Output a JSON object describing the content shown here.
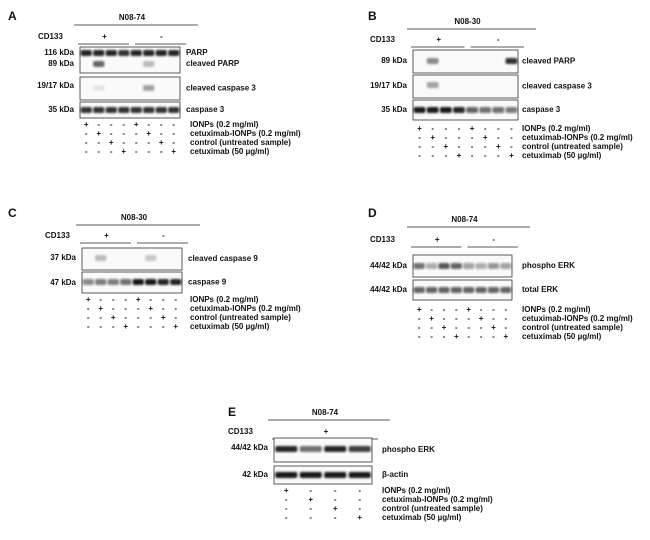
{
  "panels": [
    {
      "label": "A",
      "cell_line": "N08-74",
      "group_label": "CD133",
      "groups": [
        "+",
        "-"
      ],
      "blots": [
        {
          "kda": [
            "116 kDa",
            "89 kDa"
          ],
          "names": [
            "PARP",
            "cleaved PARP"
          ]
        },
        {
          "kda": [
            "19/17 kDa"
          ],
          "names": [
            "cleaved caspase 3"
          ]
        },
        {
          "kda": [
            "35 kDa"
          ],
          "names": [
            "caspase 3"
          ]
        }
      ],
      "treatments": [
        {
          "label": "IONPs (0.2 mg/ml)",
          "signs": [
            "+",
            "-",
            "-",
            "-",
            "+",
            "-",
            "-",
            "-"
          ]
        },
        {
          "label": "cetuximab-IONPs (0.2 mg/ml)",
          "signs": [
            "-",
            "+",
            "-",
            "-",
            "-",
            "+",
            "-",
            "-"
          ]
        },
        {
          "label": "control (untreated sample)",
          "signs": [
            "-",
            "-",
            "+",
            "-",
            "-",
            "-",
            "+",
            "-"
          ]
        },
        {
          "label": "cetuximab (50 µg/ml)",
          "signs": [
            "-",
            "-",
            "-",
            "+",
            "-",
            "-",
            "-",
            "+"
          ]
        }
      ]
    },
    {
      "label": "B",
      "cell_line": "N08-30",
      "group_label": "CD133",
      "groups": [
        "+",
        "-"
      ],
      "blots": [
        {
          "kda": [
            "89 kDa"
          ],
          "names": [
            "cleaved PARP"
          ]
        },
        {
          "kda": [
            "19/17 kDa"
          ],
          "names": [
            "cleaved caspase 3"
          ]
        },
        {
          "kda": [
            "35 kDa"
          ],
          "names": [
            "caspase 3"
          ]
        }
      ],
      "treatments": [
        {
          "label": "IONPs (0.2 mg/ml)",
          "signs": [
            "+",
            "-",
            "-",
            "-",
            "+",
            "-",
            "-",
            "-"
          ]
        },
        {
          "label": "cetuximab-IONPs (0.2 mg/ml)",
          "signs": [
            "-",
            "+",
            "-",
            "-",
            "-",
            "+",
            "-",
            "-"
          ]
        },
        {
          "label": "control (untreated sample)",
          "signs": [
            "-",
            "-",
            "+",
            "-",
            "-",
            "-",
            "+",
            "-"
          ]
        },
        {
          "label": "cetuximab (50 µg/ml)",
          "signs": [
            "-",
            "-",
            "-",
            "+",
            "-",
            "-",
            "-",
            "+"
          ]
        }
      ]
    },
    {
      "label": "C",
      "cell_line": "N08-30",
      "group_label": "CD133",
      "groups": [
        "+",
        "-"
      ],
      "blots": [
        {
          "kda": [
            "37 kDa"
          ],
          "names": [
            "cleaved caspase 9"
          ]
        },
        {
          "kda": [
            "47 kDa"
          ],
          "names": [
            "caspase 9"
          ]
        }
      ],
      "treatments": [
        {
          "label": "IONPs (0.2 mg/ml)",
          "signs": [
            "+",
            "-",
            "-",
            "-",
            "+",
            "-",
            "-",
            "-"
          ]
        },
        {
          "label": "cetuximab-IONPs (0.2 mg/ml)",
          "signs": [
            "-",
            "+",
            "-",
            "-",
            "-",
            "+",
            "-",
            "-"
          ]
        },
        {
          "label": "control (untreated sample)",
          "signs": [
            "-",
            "-",
            "+",
            "-",
            "-",
            "-",
            "+",
            "-"
          ]
        },
        {
          "label": "cetuximab (50 µg/ml)",
          "signs": [
            "-",
            "-",
            "-",
            "+",
            "-",
            "-",
            "-",
            "+"
          ]
        }
      ]
    },
    {
      "label": "D",
      "cell_line": "N08-74",
      "group_label": "CD133",
      "groups": [
        "+",
        "-"
      ],
      "blots": [
        {
          "kda": [
            "44/42 kDa"
          ],
          "names": [
            "phospho ERK"
          ]
        },
        {
          "kda": [
            "44/42 kDa"
          ],
          "names": [
            "total ERK"
          ]
        }
      ],
      "treatments": [
        {
          "label": "IONPs (0.2 mg/ml)",
          "signs": [
            "+",
            "-",
            "-",
            "-",
            "+",
            "-",
            "-",
            "-"
          ]
        },
        {
          "label": "cetuximab-IONPs (0.2 mg/ml)",
          "signs": [
            "-",
            "+",
            "-",
            "-",
            "-",
            "+",
            "-",
            "-"
          ]
        },
        {
          "label": "control (untreated sample)",
          "signs": [
            "-",
            "-",
            "+",
            "-",
            "-",
            "-",
            "+",
            "-"
          ]
        },
        {
          "label": "cetuximab (50 µg/ml)",
          "signs": [
            "-",
            "-",
            "-",
            "+",
            "-",
            "-",
            "-",
            "+"
          ]
        }
      ]
    },
    {
      "label": "E",
      "cell_line": "N08-74",
      "group_label": "CD133",
      "groups": [
        "+"
      ],
      "blots": [
        {
          "kda": [
            "44/42 kDa"
          ],
          "names": [
            "phospho ERK"
          ]
        },
        {
          "kda": [
            "42 kDa"
          ],
          "names": [
            "β-actin"
          ]
        }
      ],
      "treatments": [
        {
          "label": "IONPs (0.2 mg/ml)",
          "signs": [
            "+",
            "-",
            "-",
            "-"
          ]
        },
        {
          "label": "cetuximab-IONPs (0.2 mg/ml)",
          "signs": [
            "-",
            "+",
            "-",
            "-"
          ]
        },
        {
          "label": "control (untreated sample)",
          "signs": [
            "-",
            "-",
            "+",
            "-"
          ]
        },
        {
          "label": "cetuximab (50 µg/ml)",
          "signs": [
            "-",
            "-",
            "-",
            "+"
          ]
        }
      ]
    }
  ]
}
